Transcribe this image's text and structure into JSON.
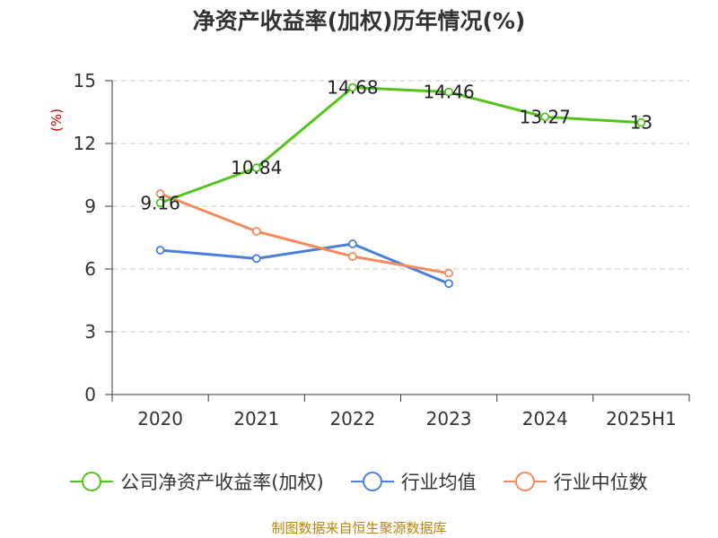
{
  "title": "净资产收益率(加权)历年情况(%)",
  "source": "制图数据来自恒生聚源数据库",
  "chart_data": {
    "type": "line",
    "title": "净资产收益率(加权)历年情况(%)",
    "ylabel": "(%)",
    "xlabel": "",
    "categories": [
      "2020",
      "2021",
      "2022",
      "2023",
      "2024",
      "2025H1"
    ],
    "ylim": [
      0,
      15
    ],
    "yticks": [
      0,
      3,
      6,
      9,
      12,
      15
    ],
    "grid": true,
    "legend_position": "bottom",
    "series": [
      {
        "name": "公司净资产收益率(加权)",
        "color": "#52c41a",
        "values": [
          9.16,
          10.84,
          14.68,
          14.46,
          13.27,
          13
        ],
        "labels": [
          "9.16",
          "10.84",
          "14.68",
          "14.46",
          "13.27",
          "13"
        ]
      },
      {
        "name": "行业均值",
        "color": "#4a7fdc",
        "values": [
          6.9,
          6.5,
          7.2,
          5.3,
          null,
          null
        ]
      },
      {
        "name": "行业中位数",
        "color": "#f28c5c",
        "values": [
          9.6,
          7.8,
          6.6,
          5.8,
          null,
          null
        ]
      }
    ]
  }
}
